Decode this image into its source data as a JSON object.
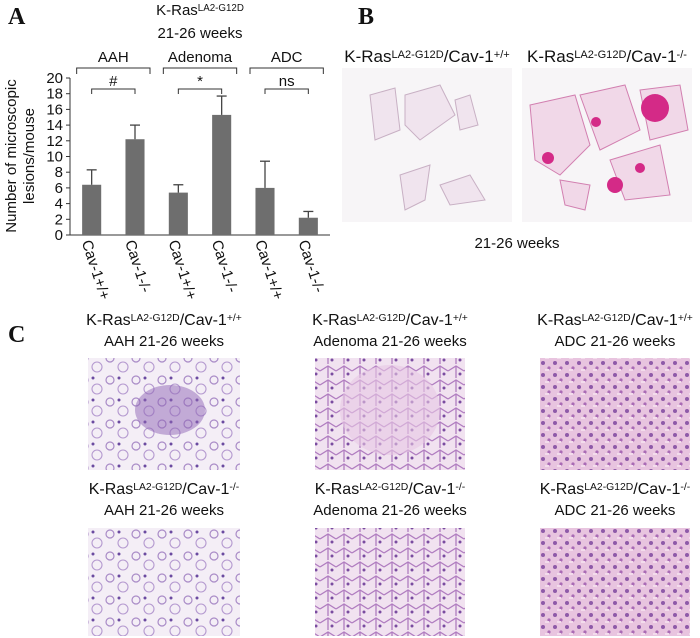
{
  "panel_labels": [
    "A",
    "B",
    "C"
  ],
  "chart_data": {
    "type": "bar",
    "title": [
      "K-Ras",
      "LA2-G12D"
    ],
    "subtitle": "21-26 weeks",
    "ylabel": [
      "Number of microscopic",
      "lesions/mouse"
    ],
    "categories": [
      "Cav-1+/+",
      "Cav-1-/-",
      "Cav-1+/+",
      "Cav-1-/-",
      "Cav-1+/+",
      "Cav-1-/-"
    ],
    "values": [
      6.4,
      12.2,
      5.4,
      15.3,
      6.0,
      2.2
    ],
    "errors": [
      1.9,
      1.8,
      1.0,
      2.4,
      3.4,
      0.8
    ],
    "color": "#6e6e6e",
    "ylim": [
      0,
      20
    ],
    "yticks": [
      0,
      2,
      4,
      6,
      8,
      10,
      12,
      14,
      16,
      18,
      20
    ],
    "groups": [
      {
        "label": "AAH",
        "significance": "#"
      },
      {
        "label": "Adenoma",
        "significance": "*"
      },
      {
        "label": "ADC",
        "significance": "ns"
      }
    ]
  },
  "gross": {
    "captions": [
      [
        "K-Ras",
        "LA2-G12D",
        "/Cav-1",
        "+/+"
      ],
      [
        "K-Ras",
        "LA2-G12D",
        "/Cav-1",
        "-/-"
      ]
    ],
    "time": "21-26 weeks"
  },
  "histology": [
    {
      "genotype": [
        "K-Ras",
        "LA2-G12D",
        "/Cav-1",
        "+/+"
      ],
      "caption": "AAH 21-26 weeks"
    },
    {
      "genotype": [
        "K-Ras",
        "LA2-G12D",
        "/Cav-1",
        "+/+"
      ],
      "caption": "Adenoma 21-26 weeks"
    },
    {
      "genotype": [
        "K-Ras",
        "LA2-G12D",
        "/Cav-1",
        "+/+"
      ],
      "caption": "ADC 21-26 weeks"
    },
    {
      "genotype": [
        "K-Ras",
        "LA2-G12D",
        "/Cav-1",
        "-/-"
      ],
      "caption": "AAH 21-26 weeks"
    },
    {
      "genotype": [
        "K-Ras",
        "LA2-G12D",
        "/Cav-1",
        "-/-"
      ],
      "caption": "Adenoma 21-26 weeks"
    },
    {
      "genotype": [
        "K-Ras",
        "LA2-G12D",
        "/Cav-1",
        "-/-"
      ],
      "caption": "ADC 21-26 weeks"
    }
  ]
}
